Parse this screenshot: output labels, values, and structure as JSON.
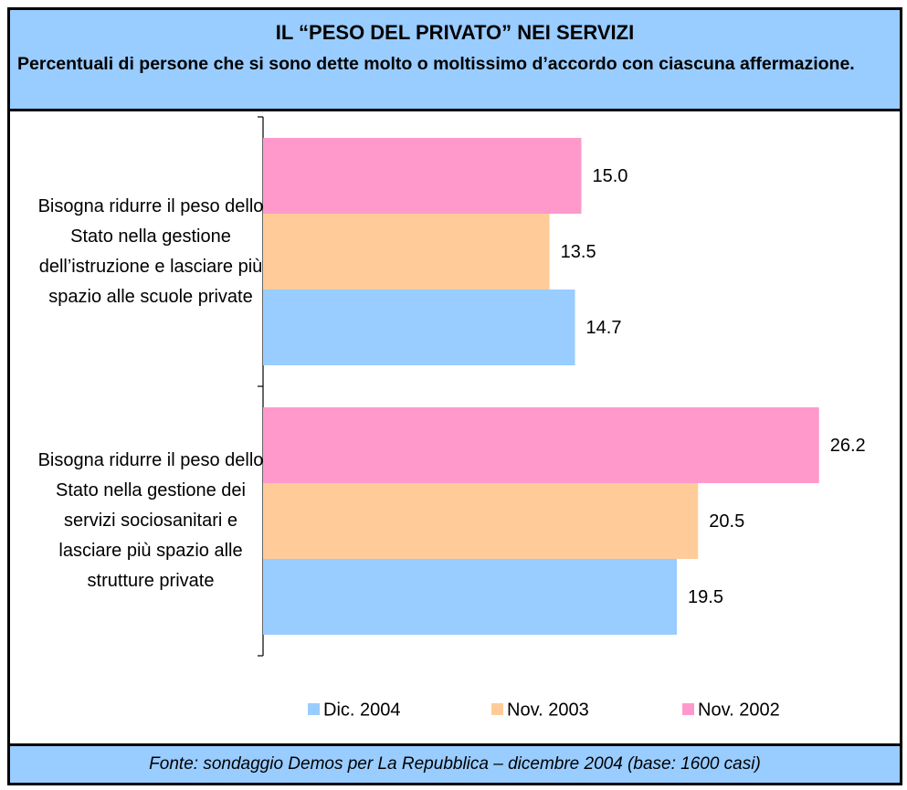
{
  "chart_data": {
    "type": "bar",
    "orientation": "horizontal",
    "title": "IL “PESO DEL PRIVATO” NEI SERVIZI",
    "subtitle": "Percentuali di persone che si sono dette molto o moltissimo d’accordo con ciascuna affermazione.",
    "source": "Fonte: sondaggio Demos per La Repubblica – dicembre 2004 (base: 1600 casi)",
    "categories": [
      "Bisogna ridurre il peso dello Stato nella gestione dell’istruzione e lasciare più spazio alle scuole private",
      "Bisogna ridurre il peso dello Stato nella gestione dei servizi sociosanitari e lasciare più spazio alle strutture private"
    ],
    "series": [
      {
        "name": "Dic. 2004",
        "color": "#99ccff",
        "values": [
          14.7,
          19.5
        ],
        "value_labels": [
          "14.7",
          "19.5"
        ]
      },
      {
        "name": "Nov. 2003",
        "color": "#ffcc99",
        "values": [
          13.5,
          20.5
        ],
        "value_labels": [
          "13.5",
          "20.5"
        ]
      },
      {
        "name": "Nov. 2002",
        "color": "#ff99cc",
        "values": [
          15.0,
          26.2
        ],
        "value_labels": [
          "15.0",
          "26.2"
        ]
      }
    ],
    "xlim": [
      0,
      30
    ],
    "legend": "bottom"
  }
}
